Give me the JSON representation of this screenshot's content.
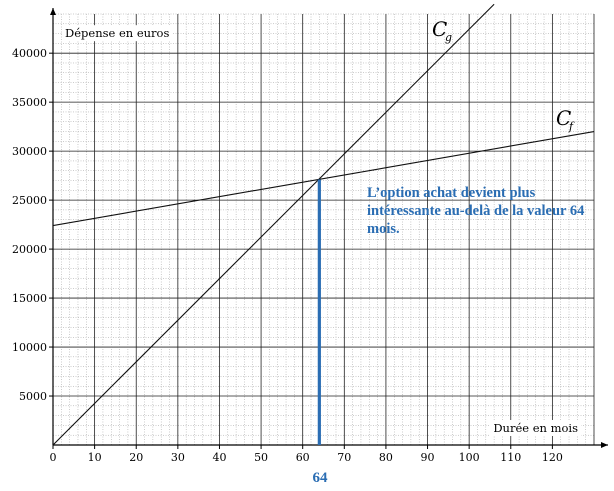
{
  "chart_data": {
    "type": "line",
    "xlabel": "Durée en mois",
    "ylabel": "Dépense en euros",
    "xlim": [
      0,
      130
    ],
    "ylim": [
      0,
      44000
    ],
    "x_ticks": [
      0,
      10,
      20,
      30,
      40,
      50,
      60,
      70,
      80,
      90,
      100,
      110,
      120
    ],
    "y_ticks": [
      5000,
      10000,
      15000,
      20000,
      25000,
      30000,
      35000,
      40000
    ],
    "grid": true,
    "series": [
      {
        "name": "Cg",
        "label_main": "C",
        "label_sub": "g",
        "x": [
          0,
          106
        ],
        "y": [
          0,
          45000
        ]
      },
      {
        "name": "Cf",
        "label_main": "C",
        "label_sub": "f",
        "x": [
          0,
          130
        ],
        "y": [
          22400,
          32000
        ]
      }
    ],
    "marker": {
      "x": 64,
      "y": 27100,
      "label": "64",
      "color": "#2a6db3"
    },
    "annotation": "L’option achat devient plus intéressante au-delà de la valeur 64 mois.",
    "annotation_color": "#2a6db3"
  }
}
